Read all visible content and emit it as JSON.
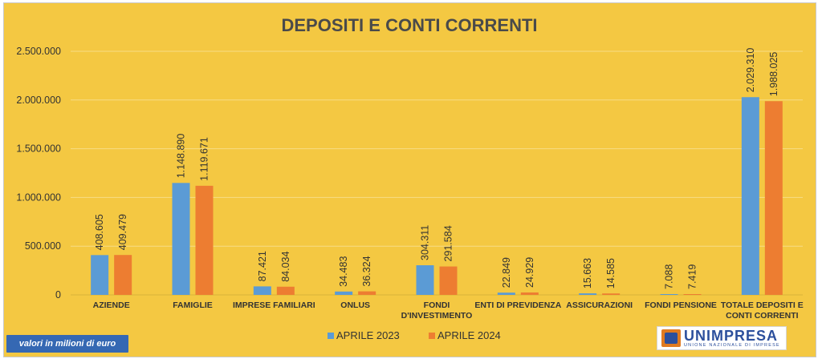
{
  "chart_data": {
    "type": "bar",
    "title": "DEPOSITI E CONTI CORRENTI",
    "categories": [
      [
        "AZIENDE"
      ],
      [
        "FAMIGLIE"
      ],
      [
        "IMPRESE FAMILIARI"
      ],
      [
        "ONLUS"
      ],
      [
        "FONDI",
        "D'INVESTIMENTO"
      ],
      [
        "ENTI DI PREVIDENZA"
      ],
      [
        "ASSICURAZIONI"
      ],
      [
        "FONDI PENSIONE"
      ],
      [
        "TOTALE DEPOSITI E",
        "CONTI CORRENTI"
      ]
    ],
    "series": [
      {
        "name": "APRILE 2023",
        "color": "#5b9bd5",
        "values": [
          408605,
          1148890,
          87421,
          34483,
          304311,
          22849,
          15663,
          7088,
          2029310
        ],
        "labels": [
          "408.605",
          "1.148.890",
          "87.421",
          "34.483",
          "304.311",
          "22.849",
          "15.663",
          "7.088",
          "2.029.310"
        ]
      },
      {
        "name": "APRILE 2024",
        "color": "#ed7d31",
        "values": [
          409479,
          1119671,
          84034,
          36324,
          291584,
          24929,
          14585,
          7419,
          1988025
        ],
        "labels": [
          "409.479",
          "1.119.671",
          "84.034",
          "36.324",
          "291.584",
          "24.929",
          "14.585",
          "7.419",
          "1.988.025"
        ]
      }
    ],
    "ylim": [
      0,
      2500000
    ],
    "yticks": [
      0,
      500000,
      1000000,
      1500000,
      2000000,
      2500000
    ],
    "ytick_labels": [
      "0",
      "500.000",
      "1.000.000",
      "1.500.000",
      "2.000.000",
      "2.500.000"
    ],
    "grid": true,
    "legend": "bottom-center"
  },
  "note": "valori in milioni di euro",
  "logo": {
    "name": "UNIMPRESA",
    "subtitle": "UNIONE NAZIONALE DI IMPRESE"
  }
}
